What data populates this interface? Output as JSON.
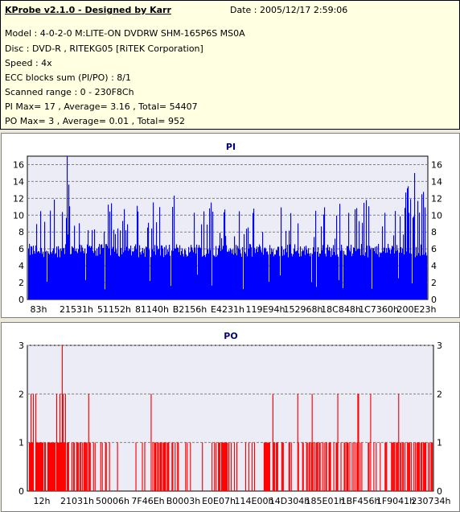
{
  "header": {
    "title": "KProbe v2.1.0 - Designed by Karr",
    "date": "Date : 2005/12/17 2:59:06",
    "model": "Model : 4-0-2-0 M:LITE-ON DVDRW SHM-165P6S MS0A",
    "disc": "Disc : DVD-R , RITEKG05 [RiTEK Corporation]",
    "speed": "Speed : 4x",
    "ecc": "ECC blocks sum (PI/PO) : 8/1",
    "range": "Scanned range : 0 - 230F8Ch",
    "pi_stats": "PI Max= 17 , Average= 3.16 , Total= 54407",
    "po_stats": "PO Max= 3 , Average= 0.01 , Total= 952"
  },
  "chart_data": [
    {
      "type": "bar",
      "title": "PI",
      "color": "#0000ff",
      "ylim": [
        0,
        17
      ],
      "yticks": [
        0,
        2,
        4,
        6,
        8,
        10,
        12,
        14,
        16
      ],
      "xticks": [
        "83h",
        "21531h",
        "51152h",
        "81140h",
        "B2156h",
        "E4231h",
        "119E94h",
        "152968h",
        "18C848h",
        "1C7360h",
        "200E23h"
      ],
      "grid": true,
      "max": 17,
      "average": 3.16,
      "total": 54407
    },
    {
      "type": "bar",
      "title": "PO",
      "color": "#ff0000",
      "ylim": [
        0,
        3
      ],
      "yticks": [
        0,
        1,
        2,
        3
      ],
      "xticks": [
        "12h",
        "21031h",
        "50006h",
        "7F46Eh",
        "B0003h",
        "E0E07h",
        "114E00h",
        "14D304h",
        "185E01h",
        "1BF456h",
        "1F9041h",
        "230734h"
      ],
      "grid": true,
      "max": 3,
      "average": 0.01,
      "total": 952
    }
  ]
}
